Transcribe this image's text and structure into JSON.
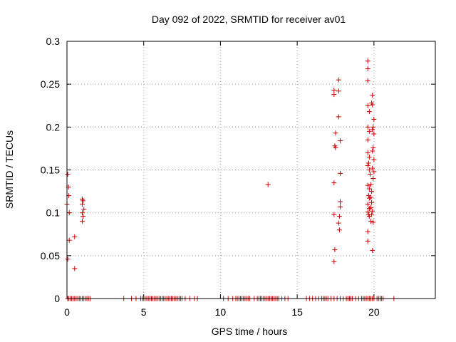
{
  "chart_data": {
    "type": "scatter",
    "title": "Day 092 of 2022, SRMTID for receiver av01",
    "xlabel": "GPS time / hours",
    "ylabel": "SRMTID / TECUs",
    "xlim": [
      0,
      24
    ],
    "ylim": [
      0,
      0.3
    ],
    "x_ticks": [
      0,
      5,
      10,
      15,
      20
    ],
    "y_ticks": [
      0,
      0.05,
      0.1,
      0.15,
      0.2,
      0.25,
      0.3
    ],
    "x_tick_labels": [
      "0",
      "5",
      "10",
      "15",
      "20"
    ],
    "y_tick_labels": [
      "0",
      "0.05",
      "0.1",
      "0.15",
      "0.2",
      "0.25",
      "0.3"
    ],
    "grid": true,
    "legend": "none",
    "series": [
      {
        "name": "av01",
        "color": "#cc0000",
        "marker": "plus",
        "points": [
          [
            0.05,
            0.145
          ],
          [
            0.0,
            0.11
          ],
          [
            0.1,
            0.13
          ],
          [
            0.12,
            0.12
          ],
          [
            0.15,
            0.1
          ],
          [
            0.05,
            0.046
          ],
          [
            0.15,
            0.068
          ],
          [
            0.5,
            0.072
          ],
          [
            0.5,
            0.035
          ],
          [
            1.0,
            0.116
          ],
          [
            1.05,
            0.114
          ],
          [
            1.0,
            0.11
          ],
          [
            1.1,
            0.104
          ],
          [
            1.0,
            0.1
          ],
          [
            1.05,
            0.096
          ],
          [
            1.0,
            0.09
          ],
          [
            13.1,
            0.133
          ],
          [
            17.4,
            0.243
          ],
          [
            17.4,
            0.238
          ],
          [
            17.7,
            0.242
          ],
          [
            17.7,
            0.255
          ],
          [
            17.5,
            0.193
          ],
          [
            17.7,
            0.212
          ],
          [
            17.45,
            0.178
          ],
          [
            17.5,
            0.176
          ],
          [
            17.8,
            0.184
          ],
          [
            17.8,
            0.146
          ],
          [
            17.4,
            0.135
          ],
          [
            17.4,
            0.098
          ],
          [
            17.8,
            0.113
          ],
          [
            17.8,
            0.107
          ],
          [
            17.75,
            0.096
          ],
          [
            17.7,
            0.088
          ],
          [
            17.75,
            0.08
          ],
          [
            17.45,
            0.057
          ],
          [
            17.4,
            0.043
          ],
          [
            19.6,
            0.277
          ],
          [
            19.6,
            0.268
          ],
          [
            19.6,
            0.254
          ],
          [
            19.6,
            0.225
          ],
          [
            19.7,
            0.218
          ],
          [
            19.6,
            0.2
          ],
          [
            19.7,
            0.195
          ],
          [
            19.6,
            0.185
          ],
          [
            19.6,
            0.17
          ],
          [
            19.7,
            0.165
          ],
          [
            19.65,
            0.158
          ],
          [
            19.6,
            0.155
          ],
          [
            19.7,
            0.15
          ],
          [
            19.75,
            0.145
          ],
          [
            19.6,
            0.132
          ],
          [
            19.7,
            0.128
          ],
          [
            19.65,
            0.12
          ],
          [
            19.7,
            0.117
          ],
          [
            19.6,
            0.11
          ],
          [
            19.7,
            0.105
          ],
          [
            19.6,
            0.101
          ],
          [
            19.65,
            0.098
          ],
          [
            19.7,
            0.096
          ],
          [
            19.6,
            0.078
          ],
          [
            19.6,
            0.067
          ],
          [
            19.9,
            0.237
          ],
          [
            19.85,
            0.228
          ],
          [
            19.9,
            0.226
          ],
          [
            20.0,
            0.209
          ],
          [
            19.95,
            0.2
          ],
          [
            19.9,
            0.197
          ],
          [
            20.0,
            0.192
          ],
          [
            19.95,
            0.176
          ],
          [
            19.9,
            0.172
          ],
          [
            20.0,
            0.162
          ],
          [
            19.9,
            0.152
          ],
          [
            20.0,
            0.148
          ],
          [
            19.95,
            0.14
          ],
          [
            19.8,
            0.133
          ],
          [
            19.85,
            0.125
          ],
          [
            19.8,
            0.118
          ],
          [
            19.85,
            0.112
          ],
          [
            19.8,
            0.106
          ],
          [
            19.9,
            0.102
          ],
          [
            19.85,
            0.098
          ],
          [
            19.8,
            0.09
          ],
          [
            19.95,
            0.089
          ],
          [
            19.9,
            0.056
          ],
          [
            0.05,
            0
          ],
          [
            0.1,
            0
          ],
          [
            0.2,
            0
          ],
          [
            0.3,
            0
          ],
          [
            0.4,
            0
          ],
          [
            0.5,
            0
          ],
          [
            0.6,
            0
          ],
          [
            0.7,
            0
          ],
          [
            0.8,
            0
          ],
          [
            0.9,
            0
          ],
          [
            1.0,
            0
          ],
          [
            1.1,
            0
          ],
          [
            1.2,
            0
          ],
          [
            1.3,
            0
          ],
          [
            1.4,
            0
          ],
          [
            1.5,
            0
          ],
          [
            3.7,
            0
          ],
          [
            4.2,
            0
          ],
          [
            4.5,
            0
          ],
          [
            4.8,
            0
          ],
          [
            4.9,
            0
          ],
          [
            5.0,
            0
          ],
          [
            5.1,
            0
          ],
          [
            5.2,
            0
          ],
          [
            5.3,
            0
          ],
          [
            5.4,
            0
          ],
          [
            5.5,
            0
          ],
          [
            5.6,
            0
          ],
          [
            5.7,
            0
          ],
          [
            5.8,
            0
          ],
          [
            5.9,
            0
          ],
          [
            6.0,
            0
          ],
          [
            6.1,
            0
          ],
          [
            6.2,
            0
          ],
          [
            6.3,
            0
          ],
          [
            6.4,
            0
          ],
          [
            6.5,
            0
          ],
          [
            6.6,
            0
          ],
          [
            6.7,
            0
          ],
          [
            6.8,
            0
          ],
          [
            6.9,
            0
          ],
          [
            7.0,
            0
          ],
          [
            7.1,
            0
          ],
          [
            7.2,
            0
          ],
          [
            7.3,
            0
          ],
          [
            7.4,
            0
          ],
          [
            7.5,
            0
          ],
          [
            7.7,
            0
          ],
          [
            8.0,
            0
          ],
          [
            8.3,
            0
          ],
          [
            8.5,
            0
          ],
          [
            10.2,
            0
          ],
          [
            10.5,
            0
          ],
          [
            10.8,
            0
          ],
          [
            11.0,
            0
          ],
          [
            11.1,
            0
          ],
          [
            11.2,
            0
          ],
          [
            11.3,
            0
          ],
          [
            11.4,
            0
          ],
          [
            11.5,
            0
          ],
          [
            11.6,
            0
          ],
          [
            11.7,
            0
          ],
          [
            11.8,
            0
          ],
          [
            11.9,
            0
          ],
          [
            12.2,
            0
          ],
          [
            12.4,
            0
          ],
          [
            12.5,
            0
          ],
          [
            12.6,
            0
          ],
          [
            12.7,
            0
          ],
          [
            12.8,
            0
          ],
          [
            12.9,
            0
          ],
          [
            13.0,
            0
          ],
          [
            13.1,
            0
          ],
          [
            13.2,
            0
          ],
          [
            13.3,
            0
          ],
          [
            13.4,
            0
          ],
          [
            13.5,
            0
          ],
          [
            13.6,
            0
          ],
          [
            13.7,
            0
          ],
          [
            13.8,
            0
          ],
          [
            14.0,
            0
          ],
          [
            14.2,
            0
          ],
          [
            14.4,
            0
          ],
          [
            15.6,
            0
          ],
          [
            15.8,
            0
          ],
          [
            16.0,
            0
          ],
          [
            16.2,
            0
          ],
          [
            16.4,
            0
          ],
          [
            16.6,
            0
          ],
          [
            16.7,
            0
          ],
          [
            16.8,
            0
          ],
          [
            16.9,
            0
          ],
          [
            17.0,
            0
          ],
          [
            17.2,
            0
          ],
          [
            17.4,
            0
          ],
          [
            17.6,
            0
          ],
          [
            17.8,
            0
          ],
          [
            18.0,
            0
          ],
          [
            18.2,
            0
          ],
          [
            18.3,
            0
          ],
          [
            18.4,
            0
          ],
          [
            18.5,
            0
          ],
          [
            18.6,
            0
          ],
          [
            18.8,
            0
          ],
          [
            19.0,
            0
          ],
          [
            19.2,
            0
          ],
          [
            19.3,
            0
          ],
          [
            19.4,
            0
          ],
          [
            19.5,
            0
          ],
          [
            19.6,
            0
          ],
          [
            19.7,
            0
          ],
          [
            19.8,
            0
          ],
          [
            19.9,
            0
          ],
          [
            20.0,
            0
          ],
          [
            20.2,
            0
          ],
          [
            20.3,
            0
          ],
          [
            20.4,
            0
          ],
          [
            20.5,
            0
          ],
          [
            20.6,
            0
          ],
          [
            21.3,
            0
          ]
        ]
      }
    ]
  }
}
